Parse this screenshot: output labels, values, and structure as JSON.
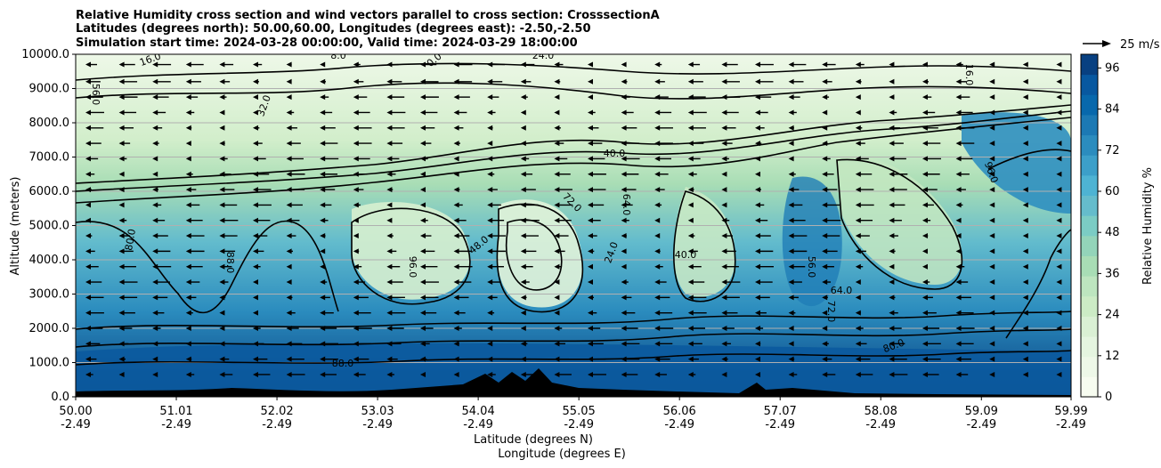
{
  "chart_data": {
    "type": "contour-cross-section",
    "title_lines": [
      "Relative Humidity cross section and wind vectors parallel to cross section: CrosssectionA",
      "Latitudes (degrees north): 50.00,60.00, Longitudes (degrees east): -2.50,-2.50",
      "Simulation start time: 2024-03-28 00:00:00, Valid time: 2024-03-29 18:00:00"
    ],
    "ylabel": "Altitude (meters)",
    "xlabel_lines": [
      "Latitude (degrees N)",
      "Longitude (degrees E)"
    ],
    "ylim": [
      0,
      10000
    ],
    "xlim": [
      50.0,
      59.99
    ],
    "y_ticks": [
      "0.0",
      "1000.0",
      "2000.0",
      "3000.0",
      "4000.0",
      "5000.0",
      "6000.0",
      "7000.0",
      "8000.0",
      "9000.0",
      "10000.0"
    ],
    "x_ticks": [
      {
        "lat": "50.00",
        "lon": "-2.49"
      },
      {
        "lat": "51.01",
        "lon": "-2.49"
      },
      {
        "lat": "52.02",
        "lon": "-2.49"
      },
      {
        "lat": "53.03",
        "lon": "-2.49"
      },
      {
        "lat": "54.04",
        "lon": "-2.49"
      },
      {
        "lat": "55.05",
        "lon": "-2.49"
      },
      {
        "lat": "56.06",
        "lon": "-2.49"
      },
      {
        "lat": "57.07",
        "lon": "-2.49"
      },
      {
        "lat": "58.08",
        "lon": "-2.49"
      },
      {
        "lat": "59.09",
        "lon": "-2.49"
      },
      {
        "lat": "59.99",
        "lon": "-2.49"
      }
    ],
    "grid": "horizontal",
    "colorbar": {
      "label": "Relative Humidity %",
      "ticks": [
        "0",
        "12",
        "24",
        "36",
        "48",
        "60",
        "72",
        "84",
        "96"
      ],
      "min": 0,
      "max": 100,
      "step": 4,
      "colors": [
        "#f7fcf0",
        "#eef8e8",
        "#e5f5e0",
        "#daf0d4",
        "#ccebc5",
        "#bde5bf",
        "#a8ddb5",
        "#93d4b9",
        "#7bccc4",
        "#65bccc",
        "#4eb3d3",
        "#3c9fc9",
        "#2b8cbe",
        "#1c79b4",
        "#0868ac",
        "#0858a0",
        "#084081"
      ]
    },
    "wind_reference": "25 m/s",
    "contour_labels": [
      "16.0",
      "8.0",
      "0.0",
      "24.0",
      "16.0",
      "56.0",
      "32.0",
      "40.0",
      "64.0",
      "72.0",
      "80.0",
      "88.0",
      "96.0",
      "48.0",
      "24.0",
      "40.0",
      "56.0",
      "64.0",
      "72.0",
      "80.0",
      "88.0",
      "96.0"
    ]
  }
}
